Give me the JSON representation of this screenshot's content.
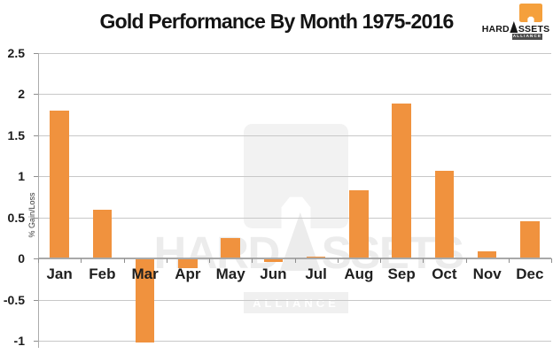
{
  "title": "Gold Performance By Month 1975-2016",
  "logo": {
    "brand": "HARDASSETS",
    "alliance": "ALLIANCE",
    "orange": "#F5A03C",
    "badge_bg": "#4D4D4D"
  },
  "watermark": {
    "brand": "HARDASSETS",
    "alliance": "ALLIANCE"
  },
  "chart_data": {
    "type": "bar",
    "title": "Gold Performance By Month 1975-2016",
    "categories": [
      "Jan",
      "Feb",
      "Mar",
      "Apr",
      "May",
      "Jun",
      "Jul",
      "Aug",
      "Sep",
      "Oct",
      "Nov",
      "Dec"
    ],
    "values": [
      1.8,
      0.59,
      -1.02,
      -0.12,
      0.25,
      -0.04,
      0.02,
      0.83,
      1.88,
      1.06,
      0.09,
      0.45
    ],
    "value_unit": "%",
    "ylabel": "% Gain/Loss",
    "xlabel": "",
    "yticks": [
      2.5,
      2,
      1.5,
      1,
      0.5,
      0,
      -0.5,
      -1
    ],
    "ylim": [
      -1.1,
      2.5
    ],
    "grid": true,
    "legend": null,
    "bar_color": "#F0923E"
  }
}
